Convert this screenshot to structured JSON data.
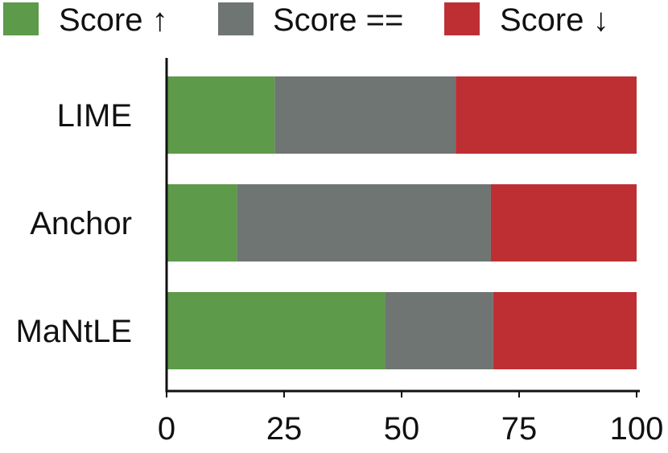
{
  "chart_data": {
    "type": "bar",
    "orientation": "horizontal",
    "stacked": true,
    "categories": [
      "LIME",
      "Anchor",
      "MaNtLE"
    ],
    "series": [
      {
        "name": "Score ↑",
        "color": "#5d9a4a",
        "values": [
          23,
          15,
          46.5
        ]
      },
      {
        "name": "Score ==",
        "color": "#6f7572",
        "values": [
          38.5,
          54,
          23
        ]
      },
      {
        "name": "Score ↓",
        "color": "#be2f34",
        "values": [
          38.5,
          31,
          30.5
        ]
      }
    ],
    "xlim": [
      0,
      100
    ],
    "xticks": [
      "0",
      "25",
      "50",
      "75",
      "100"
    ],
    "xlabel": "",
    "ylabel": "",
    "title": "",
    "grid": false,
    "legend_position": "top"
  }
}
